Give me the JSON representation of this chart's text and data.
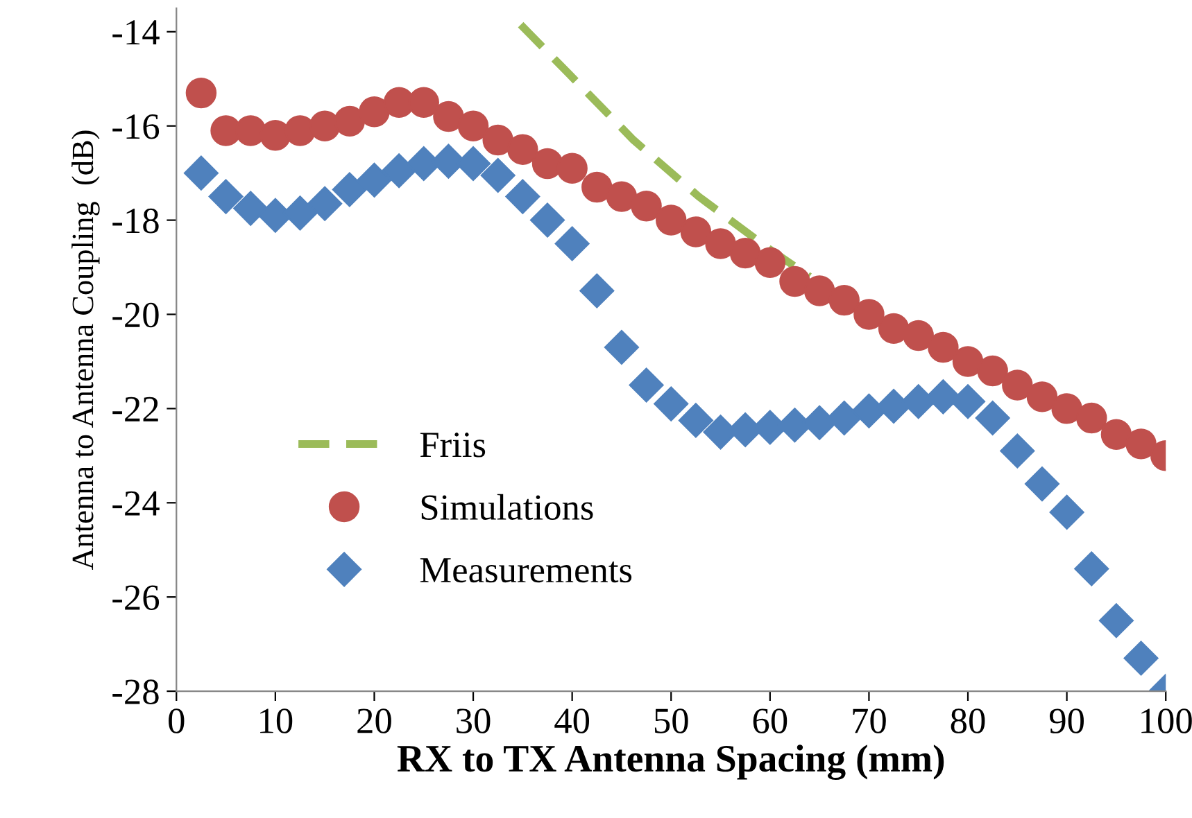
{
  "chart_data": {
    "type": "scatter",
    "xlabel": "RX to TX Antenna Spacing (mm)",
    "ylabel": "Antenna to Antenna Coupling  (dB)",
    "xlim": [
      0,
      100
    ],
    "xticks": [
      0,
      10,
      20,
      30,
      40,
      50,
      60,
      70,
      80,
      90,
      100
    ],
    "ylim": [
      -28,
      -13.5
    ],
    "yticks": [
      -28,
      -26,
      -24,
      -22,
      -20,
      -18,
      -16,
      -14
    ],
    "grid": false,
    "legend": "left",
    "series": [
      {
        "name": "Friis",
        "type": "line",
        "line_style": "dashed",
        "marker": "none",
        "color": "#9bbb59",
        "x": [
          34.8,
          39.7,
          46.2,
          52.8,
          59.5,
          64
        ],
        "values": [
          -13.85,
          -14.9,
          -16.3,
          -17.5,
          -18.55,
          -19.2
        ]
      },
      {
        "name": "Simulations",
        "marker": "circle",
        "color": "#c0504d",
        "x": [
          2.5,
          5,
          7.5,
          10,
          12.5,
          15,
          17.5,
          20,
          22.5,
          25,
          27.5,
          30,
          32.5,
          35,
          37.5,
          40,
          42.5,
          45,
          47.5,
          50,
          52.5,
          55,
          57.5,
          60,
          62.5,
          65,
          67.5,
          70,
          72.5,
          75,
          77.5,
          80,
          82.5,
          85,
          87.5,
          90,
          92.5,
          95,
          97.5,
          100
        ],
        "values": [
          -15.3,
          -16.1,
          -16.1,
          -16.2,
          -16.1,
          -16.0,
          -15.9,
          -15.7,
          -15.5,
          -15.5,
          -15.8,
          -16.0,
          -16.3,
          -16.5,
          -16.8,
          -16.9,
          -17.3,
          -17.5,
          -17.7,
          -18.0,
          -18.25,
          -18.5,
          -18.7,
          -18.9,
          -19.3,
          -19.5,
          -19.7,
          -20.0,
          -20.3,
          -20.45,
          -20.7,
          -21.0,
          -21.2,
          -21.5,
          -21.75,
          -22.0,
          -22.2,
          -22.55,
          -22.75,
          -23.0
        ]
      },
      {
        "name": "Measurements",
        "marker": "diamond",
        "color": "#4f81bd",
        "x": [
          2.5,
          5,
          7.5,
          10,
          12.5,
          15,
          17.5,
          20,
          22.5,
          25,
          27.5,
          30,
          32.5,
          35,
          37.5,
          40,
          42.5,
          45,
          47.5,
          50,
          52.5,
          55,
          57.5,
          60,
          62.5,
          65,
          67.5,
          70,
          72.5,
          75,
          77.5,
          80,
          82.5,
          85,
          87.5,
          90,
          92.5,
          95,
          97.5,
          100
        ],
        "values": [
          -17.0,
          -17.5,
          -17.75,
          -17.9,
          -17.85,
          -17.65,
          -17.35,
          -17.15,
          -16.95,
          -16.8,
          -16.75,
          -16.8,
          -17.05,
          -17.5,
          -18.0,
          -18.5,
          -19.5,
          -20.7,
          -21.5,
          -21.9,
          -22.25,
          -22.5,
          -22.45,
          -22.4,
          -22.35,
          -22.3,
          -22.2,
          -22.05,
          -21.95,
          -21.85,
          -21.75,
          -21.85,
          -22.2,
          -22.9,
          -23.6,
          -24.2,
          -25.4,
          -26.5,
          -27.3,
          -28.0
        ]
      }
    ]
  }
}
